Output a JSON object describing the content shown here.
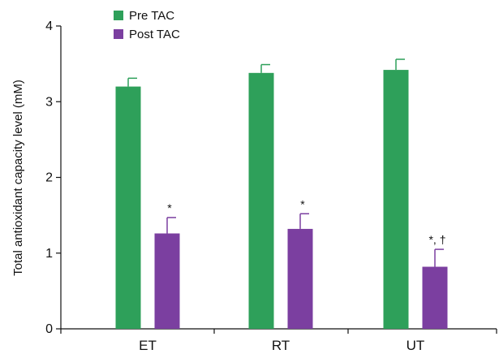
{
  "chart_data": {
    "type": "bar",
    "title": "",
    "xlabel": "",
    "ylabel": "Total antioxidant capacity level (mM)",
    "ylim": [
      0,
      4
    ],
    "yticks": [
      "0",
      "1",
      "2",
      "3",
      "4"
    ],
    "categories": [
      "ET",
      "RT",
      "UT"
    ],
    "legend_position": "top-left",
    "grid": false,
    "series": [
      {
        "name": "Pre TAC",
        "color": "#2ea05a",
        "values": [
          3.2,
          3.38,
          3.42
        ],
        "errors": [
          0.11,
          0.11,
          0.14
        ],
        "annotations": [
          "",
          "",
          ""
        ]
      },
      {
        "name": "Post TAC",
        "color": "#7b3fa0",
        "values": [
          1.26,
          1.32,
          0.82
        ],
        "errors": [
          0.21,
          0.2,
          0.23
        ],
        "annotations": [
          "*",
          "*",
          "*, †"
        ]
      }
    ]
  }
}
